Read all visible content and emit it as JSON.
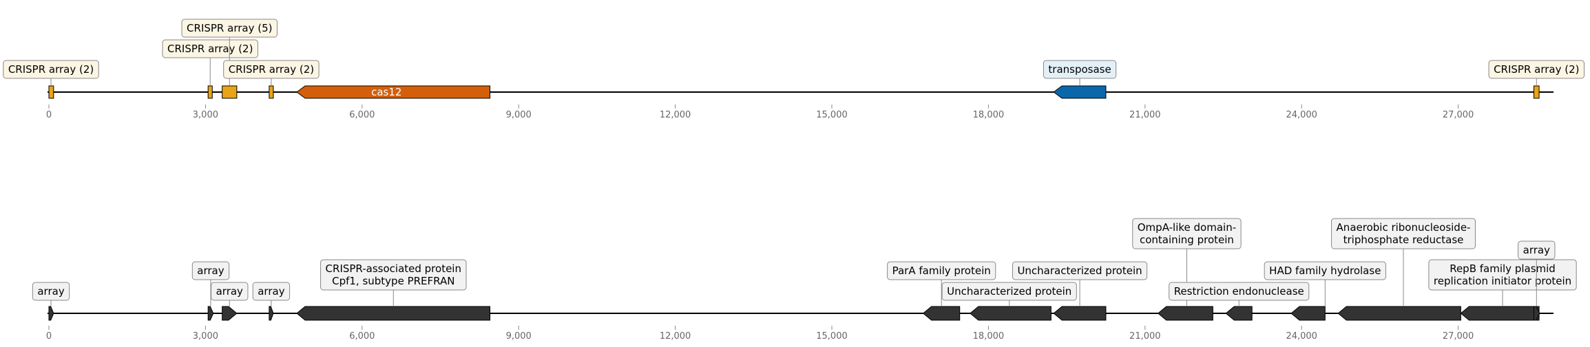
{
  "axis": {
    "ticks": [
      0,
      3000,
      6000,
      9000,
      12000,
      15000,
      18000,
      21000,
      24000,
      27000
    ],
    "tick_labels": [
      "0",
      "3,000",
      "6,000",
      "9,000",
      "12,000",
      "15,000",
      "18,000",
      "21,000",
      "24,000",
      "27,000"
    ],
    "range": [
      0,
      28800
    ]
  },
  "colors": {
    "crispr_fill": "#e8a317",
    "cas12_fill": "#d45f0a",
    "transposase_fill": "#0a68aa",
    "gene_fill": "#333333",
    "crispr_box": "#fbf5e3",
    "transposase_box": "#e4f0f8",
    "gene_box": "#f2f2f2"
  },
  "track1": {
    "features": [
      {
        "start": 0,
        "end": 90,
        "strand": 0,
        "kind": "crispr"
      },
      {
        "start": 3050,
        "end": 3130,
        "strand": 0,
        "kind": "crispr"
      },
      {
        "start": 3320,
        "end": 3600,
        "strand": 0,
        "kind": "crispr"
      },
      {
        "start": 4220,
        "end": 4300,
        "strand": 0,
        "kind": "crispr"
      },
      {
        "start": 4750,
        "end": 8450,
        "strand": -1,
        "kind": "cas12",
        "inner_label": "cas12"
      },
      {
        "start": 19250,
        "end": 20250,
        "strand": -1,
        "kind": "transposase"
      },
      {
        "start": 28450,
        "end": 28550,
        "strand": 0,
        "kind": "crispr"
      }
    ],
    "labels": [
      {
        "text": "CRISPR array (2)",
        "anchor": 40,
        "row": 1,
        "kind": "crispr"
      },
      {
        "text": "CRISPR array (2)",
        "anchor": 3090,
        "row": 2,
        "kind": "crispr"
      },
      {
        "text": "CRISPR array (5)",
        "anchor": 3460,
        "row": 3,
        "kind": "crispr"
      },
      {
        "text": "CRISPR array (2)",
        "anchor": 4260,
        "row": 1,
        "kind": "crispr"
      },
      {
        "text": "transposase",
        "anchor": 19750,
        "row": 1,
        "kind": "transposase"
      },
      {
        "text": "CRISPR array (2)",
        "anchor": 28500,
        "row": 1,
        "kind": "crispr"
      }
    ]
  },
  "track2": {
    "features": [
      {
        "start": 0,
        "end": 90,
        "strand": 1
      },
      {
        "start": 3050,
        "end": 3150,
        "strand": 1
      },
      {
        "start": 3320,
        "end": 3600,
        "strand": 1
      },
      {
        "start": 4220,
        "end": 4300,
        "strand": 1
      },
      {
        "start": 4750,
        "end": 8450,
        "strand": -1
      },
      {
        "start": 16750,
        "end": 17450,
        "strand": -1
      },
      {
        "start": 17650,
        "end": 19200,
        "strand": -1
      },
      {
        "start": 19250,
        "end": 20250,
        "strand": -1
      },
      {
        "start": 21250,
        "end": 22300,
        "strand": -1
      },
      {
        "start": 22550,
        "end": 23050,
        "strand": -1
      },
      {
        "start": 23800,
        "end": 24450,
        "strand": -1
      },
      {
        "start": 24700,
        "end": 27050,
        "strand": -1
      },
      {
        "start": 27050,
        "end": 28550,
        "strand": -1
      },
      {
        "start": 28450,
        "end": 28560,
        "strand": 1
      }
    ],
    "labels": [
      {
        "text": [
          "array"
        ],
        "anchor": 40,
        "row": 1
      },
      {
        "text": [
          "array"
        ],
        "anchor": 3100,
        "row": 2
      },
      {
        "text": [
          "array"
        ],
        "anchor": 3460,
        "row": 1
      },
      {
        "text": [
          "array"
        ],
        "anchor": 4260,
        "row": 1
      },
      {
        "text": [
          "CRISPR-associated protein",
          "Cpf1, subtype PREFRAN"
        ],
        "anchor": 6600,
        "row": 1.5
      },
      {
        "text": [
          "ParA family protein"
        ],
        "anchor": 17100,
        "row": 2
      },
      {
        "text": [
          "Uncharacterized protein"
        ],
        "anchor": 18400,
        "row": 1
      },
      {
        "text": [
          "Uncharacterized protein"
        ],
        "anchor": 19750,
        "row": 2
      },
      {
        "text": [
          "OmpA-like domain-",
          "containing protein"
        ],
        "anchor": 21800,
        "row": 3.5
      },
      {
        "text": [
          "Restriction endonuclease"
        ],
        "anchor": 22800,
        "row": 1
      },
      {
        "text": [
          "HAD family hydrolase"
        ],
        "anchor": 24450,
        "row": 2
      },
      {
        "text": [
          "Anaerobic ribonucleoside-",
          "triphosphate reductase"
        ],
        "anchor": 25950,
        "row": 3.5
      },
      {
        "text": [
          "RepB family plasmid",
          "replication initiator protein"
        ],
        "anchor": 27850,
        "row": 1.5
      },
      {
        "text": [
          "array"
        ],
        "anchor": 28500,
        "row": 3
      }
    ]
  }
}
